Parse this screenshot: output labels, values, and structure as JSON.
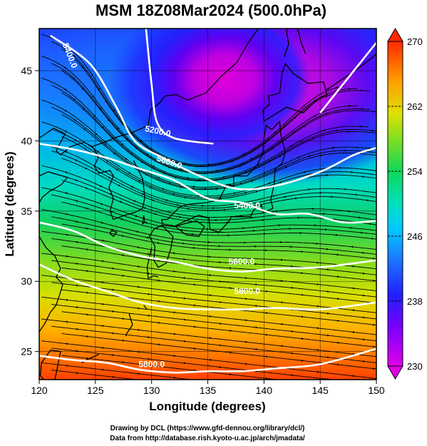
{
  "title": "MSM 18Z08Mar2024 (500.0hPa)",
  "xlabel": "Longitude (degrees)",
  "ylabel": "Latitude  (degrees)",
  "x_ticks": [
    "120",
    "125",
    "130",
    "135",
    "140",
    "145",
    "150"
  ],
  "y_ticks": [
    "25",
    "30",
    "35",
    "40",
    "45"
  ],
  "colorbar_ticks": [
    "230",
    "238",
    "246",
    "254",
    "262",
    "270"
  ],
  "contour_labels": [
    "5400.0",
    "5200.0",
    "5600.0",
    "5400.0",
    "5600.0",
    "5800.0",
    "5800.0"
  ],
  "credits": {
    "line1": "Drawing by DCL (https://www.gfd-dennou.org/library/dcl/)",
    "line2": "Data from http://database.rish.kyoto-u.ac.jp/arch/jmadata/"
  },
  "chart_data": {
    "type": "heatmap",
    "title": "MSM 18Z08Mar2024 (500.0hPa)",
    "xlabel": "Longitude (degrees)",
    "ylabel": "Latitude  (degrees)",
    "xlim": [
      120,
      150
    ],
    "ylim": [
      23,
      48
    ],
    "colorbar": {
      "range": [
        230,
        270
      ],
      "ticks": [
        230,
        238,
        246,
        254,
        262,
        270
      ]
    },
    "contour_interval": 200,
    "contours": [
      {
        "level": 5200,
        "points": [
          [
            129.5,
            48
          ],
          [
            130,
            44
          ],
          [
            130.5,
            41.3
          ],
          [
            132,
            40.2
          ],
          [
            135.5,
            39.8
          ]
        ]
      },
      {
        "level": 5400,
        "points": [
          [
            121,
            47.5
          ],
          [
            124.5,
            45.5
          ],
          [
            126.8,
            42.5
          ],
          [
            128.5,
            40
          ],
          [
            131,
            38.8
          ],
          [
            134,
            37.6
          ],
          [
            137.5,
            36.6
          ],
          [
            141,
            36.8
          ],
          [
            145,
            37.8
          ],
          [
            148,
            39
          ],
          [
            150,
            39.5
          ]
        ]
      },
      {
        "level": 5400,
        "points": [
          [
            145,
            42
          ],
          [
            148,
            45
          ],
          [
            150,
            47
          ]
        ]
      },
      {
        "level": 5600,
        "points": [
          [
            120,
            39.8
          ],
          [
            123,
            39.4
          ],
          [
            126,
            38.8
          ],
          [
            129,
            38
          ],
          [
            132,
            37.2
          ],
          [
            135,
            35.9
          ],
          [
            138,
            35.6
          ],
          [
            141,
            34.8
          ],
          [
            144,
            34.8
          ],
          [
            147,
            34.2
          ],
          [
            150,
            34.3
          ]
        ]
      },
      {
        "level": 5600,
        "points": [
          [
            120,
            34.2
          ],
          [
            123,
            33.6
          ],
          [
            126,
            32.5
          ],
          [
            129,
            31.8
          ],
          [
            132,
            31.4
          ],
          [
            135,
            30.9
          ],
          [
            138,
            30.7
          ],
          [
            141,
            30.9
          ],
          [
            145,
            31
          ],
          [
            150,
            31.5
          ]
        ]
      },
      {
        "level": 5800,
        "points": [
          [
            120,
            31.2
          ],
          [
            123,
            30.1
          ],
          [
            126,
            29.3
          ],
          [
            129,
            28.5
          ],
          [
            132,
            28.1
          ],
          [
            135,
            28
          ],
          [
            138,
            28
          ],
          [
            141,
            28.1
          ],
          [
            145,
            28
          ],
          [
            150,
            28.5
          ]
        ]
      },
      {
        "level": 5800,
        "points": [
          [
            120,
            24.7
          ],
          [
            123,
            24.4
          ],
          [
            126,
            24.2
          ],
          [
            129,
            23.7
          ],
          [
            132,
            23.5
          ],
          [
            135,
            23.6
          ],
          [
            138,
            23.6
          ],
          [
            141,
            23.8
          ],
          [
            145,
            24.1
          ],
          [
            150,
            25.2
          ]
        ]
      }
    ],
    "contour_label_positions": [
      [
        122.5,
        46
      ],
      [
        130.5,
        40.5
      ],
      [
        131.5,
        38.3
      ],
      [
        138.5,
        35.2
      ],
      [
        138,
        31.2
      ],
      [
        138.5,
        29.1
      ],
      [
        130,
        23.9
      ]
    ],
    "colormap": "rainbow (magenta-blue-cyan-green-yellow-red)",
    "overlays": [
      "streamlines (wind)",
      "coastlines",
      "lat/lon grid"
    ]
  }
}
